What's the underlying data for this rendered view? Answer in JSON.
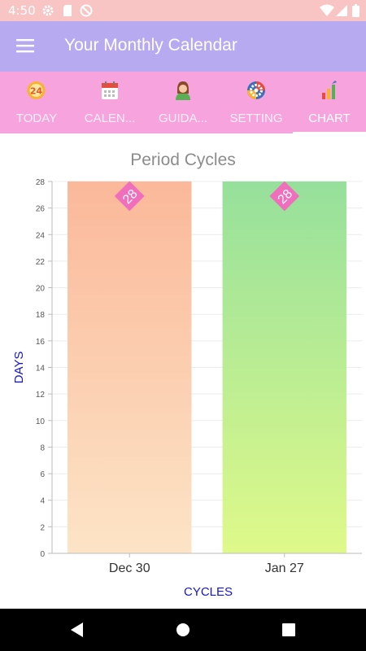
{
  "status_bar": {
    "time": "4:50"
  },
  "app_bar": {
    "title": "Your Monthly Calendar"
  },
  "tabs": [
    {
      "label": "TODAY",
      "icon": "calendar-24-icon"
    },
    {
      "label": "CALEN...",
      "icon": "calendar-icon"
    },
    {
      "label": "GUIDA...",
      "icon": "woman-icon"
    },
    {
      "label": "SETTING",
      "icon": "gear-icon"
    },
    {
      "label": "CHART",
      "icon": "bar-chart-icon",
      "active": true
    }
  ],
  "chart_data": {
    "type": "bar",
    "title": "Period Cycles",
    "xlabel": "CYCLES",
    "ylabel": "DAYS",
    "categories": [
      "Dec 30",
      "Jan 27"
    ],
    "series": [
      {
        "values": [
          28,
          28
        ]
      }
    ],
    "data_labels": [
      "28",
      "28"
    ],
    "ylim": [
      0,
      28
    ],
    "yticks": [
      0,
      2,
      4,
      6,
      8,
      10,
      12,
      14,
      16,
      18,
      20,
      22,
      24,
      26,
      28
    ],
    "grid": true,
    "bar_gradients": [
      {
        "top": "#fbb89a",
        "bottom": "#fde4c6"
      },
      {
        "top": "#96e09c",
        "bottom": "#dff98a"
      }
    ],
    "label_color": "#f06fbd",
    "axis_title_color": "#1515d0"
  }
}
